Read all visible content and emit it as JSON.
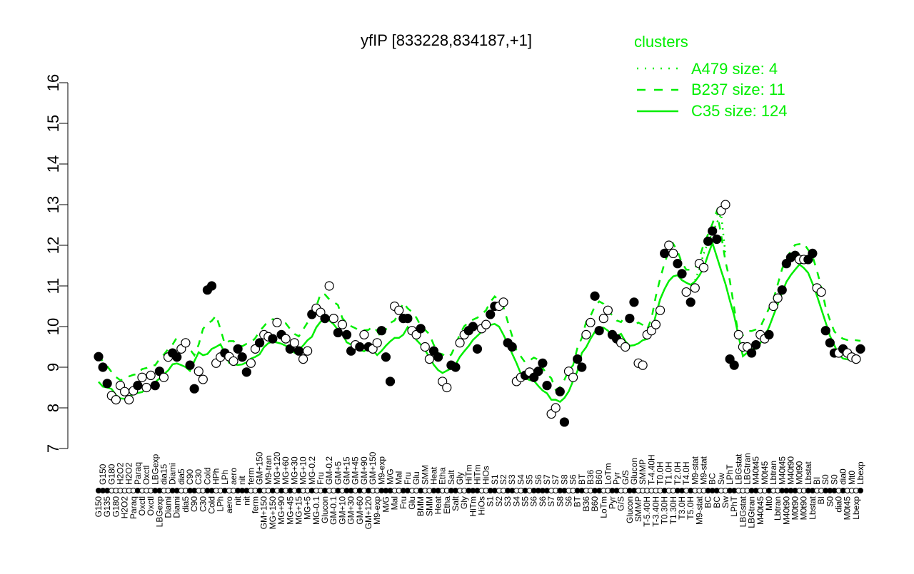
{
  "chart_data": {
    "type": "scatter",
    "title": "yfIP [833228,834187,+1]",
    "xlabel": "",
    "ylabel": "",
    "ylim": [
      7,
      16
    ],
    "yticks": [
      "7",
      "8",
      "9",
      "10",
      "11",
      "12",
      "13",
      "14",
      "15",
      "16"
    ],
    "grid": false,
    "legend": {
      "title": "clusters",
      "placement": "top-right",
      "color": "#00ee00",
      "entries": [
        {
          "label": "A479 size: 4",
          "style": "dotted"
        },
        {
          "label": "B237 size: 11",
          "style": "dashed"
        },
        {
          "label": "C35 size: 124",
          "style": "solid"
        }
      ]
    },
    "points": [
      [
        "G150",
        9.26,
        1
      ],
      [
        "G150",
        9.0,
        1
      ],
      [
        "G135",
        8.6,
        1
      ],
      [
        "G180",
        8.3,
        0
      ],
      [
        "G180",
        8.2,
        0
      ],
      [
        "H2O2",
        8.55,
        0
      ],
      [
        "H2O2",
        8.4,
        0
      ],
      [
        "H2O2",
        8.2,
        0
      ],
      [
        "Paraq",
        8.42,
        0
      ],
      [
        "Paraq",
        8.55,
        1
      ],
      [
        "Oxctl",
        8.75,
        0
      ],
      [
        "Oxctl",
        8.5,
        0
      ],
      [
        "Oxctl",
        8.8,
        0
      ],
      [
        "LBGexp",
        8.55,
        1
      ],
      [
        "LBGexp",
        8.9,
        1
      ],
      [
        "dia15",
        8.75,
        0
      ],
      [
        "Diami",
        9.25,
        0
      ],
      [
        "Diami",
        9.35,
        1
      ],
      [
        "Diami",
        9.25,
        1
      ],
      [
        "dia5",
        9.45,
        0
      ],
      [
        "dia5",
        9.6,
        0
      ],
      [
        "C90",
        9.05,
        1
      ],
      [
        "C90",
        8.47,
        1
      ],
      [
        "C30",
        8.9,
        0
      ],
      [
        "C30",
        8.7,
        0
      ],
      [
        "Cold",
        10.9,
        1
      ],
      [
        "Cold",
        11.0,
        1
      ],
      [
        "HPh",
        9.1,
        0
      ],
      [
        "LPh",
        9.25,
        0
      ],
      [
        "LPh",
        9.35,
        1
      ],
      [
        "aero",
        9.26,
        0
      ],
      [
        "aero",
        9.15,
        0
      ],
      [
        "nit",
        9.45,
        1
      ],
      [
        "nit",
        9.25,
        1
      ],
      [
        "nit",
        8.88,
        1
      ],
      [
        "ferm",
        9.1,
        0
      ],
      [
        "ferm",
        9.45,
        0
      ],
      [
        "GM+150",
        9.6,
        1
      ],
      [
        "GM+150",
        9.8,
        0
      ],
      [
        "M9-tran",
        9.75,
        0
      ],
      [
        "MG+150",
        9.7,
        1
      ],
      [
        "MG+120",
        10.1,
        0
      ],
      [
        "MG+90",
        9.8,
        1
      ],
      [
        "MG+60",
        9.7,
        0
      ],
      [
        "MG+45",
        9.45,
        1
      ],
      [
        "MG+30",
        9.6,
        0
      ],
      [
        "MG+15",
        9.4,
        1
      ],
      [
        "MG+10",
        9.2,
        0
      ],
      [
        "MG+5",
        9.4,
        0
      ],
      [
        "MG-0.2",
        10.3,
        1
      ],
      [
        "MG-0.1",
        10.45,
        0
      ],
      [
        "Fru",
        10.35,
        0
      ],
      [
        "Glucon",
        10.2,
        1
      ],
      [
        "GM-0.2",
        11.0,
        0
      ],
      [
        "GM-0.1",
        10.2,
        0
      ],
      [
        "GM+5",
        9.85,
        1
      ],
      [
        "GM+10",
        10.05,
        0
      ],
      [
        "GM+15",
        9.8,
        1
      ],
      [
        "GM+30",
        9.4,
        1
      ],
      [
        "GM+45",
        9.55,
        0
      ],
      [
        "GM+60",
        9.5,
        1
      ],
      [
        "GM+90",
        9.8,
        0
      ],
      [
        "GM+120",
        9.5,
        1
      ],
      [
        "GM+150",
        9.45,
        0
      ],
      [
        "M9-exp",
        9.6,
        0
      ],
      [
        "M9-exp",
        9.9,
        1
      ],
      [
        "M/G",
        9.25,
        1
      ],
      [
        "M/G",
        8.65,
        1
      ],
      [
        "Mal",
        10.5,
        0
      ],
      [
        "Mal",
        10.4,
        0
      ],
      [
        "Fru",
        10.2,
        1
      ],
      [
        "Fru",
        10.2,
        1
      ],
      [
        "Glu",
        9.9,
        0
      ],
      [
        "Glu",
        9.8,
        0
      ],
      [
        "BMM",
        9.95,
        1
      ],
      [
        "SMM",
        9.5,
        0
      ],
      [
        "SMM",
        9.2,
        0
      ],
      [
        "Heat",
        9.4,
        1
      ],
      [
        "Heat",
        9.25,
        1
      ],
      [
        "Etha",
        8.65,
        0
      ],
      [
        "Etha",
        8.5,
        0
      ],
      [
        "Salt",
        9.05,
        1
      ],
      [
        "Salt",
        9.0,
        1
      ],
      [
        "Gly",
        9.6,
        0
      ],
      [
        "Gly",
        9.8,
        0
      ],
      [
        "HiTm",
        9.9,
        1
      ],
      [
        "HiTm",
        10.0,
        1
      ],
      [
        "HiTm",
        9.45,
        1
      ],
      [
        "HiOs",
        9.95,
        0
      ],
      [
        "HiOs",
        10.05,
        0
      ],
      [
        "S1",
        10.3,
        1
      ],
      [
        "S1",
        10.5,
        1
      ],
      [
        "S2",
        10.5,
        0
      ],
      [
        "S2",
        10.6,
        0
      ],
      [
        "S3",
        9.6,
        1
      ],
      [
        "S3",
        9.5,
        1
      ],
      [
        "S4",
        8.65,
        0
      ],
      [
        "S4",
        8.75,
        0
      ],
      [
        "S5",
        8.8,
        1
      ],
      [
        "S5",
        8.88,
        0
      ],
      [
        "S6",
        8.75,
        1
      ],
      [
        "S6",
        8.9,
        1
      ],
      [
        "S6",
        9.1,
        1
      ],
      [
        "S7",
        8.55,
        1
      ],
      [
        "S7",
        7.85,
        0
      ],
      [
        "S7",
        8.0,
        0
      ],
      [
        "S8",
        8.4,
        1
      ],
      [
        "S8",
        7.65,
        1
      ],
      [
        "S6",
        8.9,
        0
      ],
      [
        "S6",
        8.75,
        0
      ],
      [
        "BT",
        9.2,
        1
      ],
      [
        "BT",
        9.0,
        1
      ],
      [
        "B36",
        9.8,
        0
      ],
      [
        "B36",
        10.1,
        0
      ],
      [
        "B60",
        10.75,
        1
      ],
      [
        "B60",
        9.9,
        1
      ],
      [
        "LoTm",
        10.2,
        0
      ],
      [
        "LoTm",
        10.4,
        0
      ],
      [
        "Pyr",
        9.8,
        1
      ],
      [
        "Pyr",
        9.7,
        1
      ],
      [
        "G/S",
        9.6,
        0
      ],
      [
        "G/S",
        9.5,
        0
      ],
      [
        "Glucon",
        10.2,
        1
      ],
      [
        "Glucon",
        10.6,
        1
      ],
      [
        "SMMP",
        9.1,
        0
      ],
      [
        "SMMP",
        9.05,
        0
      ],
      [
        "T-5.40H",
        9.8,
        0
      ],
      [
        "T-4.40H",
        9.9,
        0
      ],
      [
        "T-3.40H",
        10.05,
        0
      ],
      [
        "T0.0H",
        10.4,
        0
      ],
      [
        "T0.30H",
        11.8,
        1
      ],
      [
        "T1.0H",
        12.0,
        0
      ],
      [
        "T1.30H",
        11.8,
        0
      ],
      [
        "T2.0H",
        11.55,
        1
      ],
      [
        "T3.0H",
        11.3,
        1
      ],
      [
        "T4.0H",
        10.85,
        0
      ],
      [
        "T5.0H",
        10.6,
        1
      ],
      [
        "M9-stat",
        10.95,
        0
      ],
      [
        "M9-stat",
        11.55,
        0
      ],
      [
        "M9-stat",
        11.45,
        0
      ],
      [
        "BC",
        12.1,
        1
      ],
      [
        "BC",
        12.35,
        1
      ],
      [
        "BC",
        12.15,
        1
      ],
      [
        "Sw",
        12.85,
        0
      ],
      [
        "Sw",
        13.0,
        0
      ],
      [
        "LPhT",
        9.2,
        1
      ],
      [
        "LPhT",
        9.05,
        1
      ],
      [
        "LBGstat",
        9.8,
        0
      ],
      [
        "LBGstat",
        9.5,
        0
      ],
      [
        "LBGtran",
        9.5,
        0
      ],
      [
        "LBGtran",
        9.35,
        1
      ],
      [
        "M40t45",
        9.55,
        1
      ],
      [
        "M40t45",
        9.8,
        0
      ],
      [
        "M0t45",
        9.7,
        0
      ],
      [
        "Mt0",
        9.8,
        1
      ],
      [
        "Lbtran",
        10.5,
        0
      ],
      [
        "Lbtran",
        10.7,
        0
      ],
      [
        "M40t45",
        10.9,
        1
      ],
      [
        "M40t90",
        11.55,
        1
      ],
      [
        "M40t90",
        11.7,
        1
      ],
      [
        "M0t90",
        11.75,
        1
      ],
      [
        "M0t90",
        11.65,
        0
      ],
      [
        "M0t90",
        11.65,
        0
      ],
      [
        "Lbstat",
        11.65,
        1
      ],
      [
        "Lbstat",
        11.8,
        1
      ],
      [
        "BI",
        10.95,
        0
      ],
      [
        "BI",
        10.85,
        0
      ],
      [
        "S0",
        9.9,
        1
      ],
      [
        "S0",
        9.6,
        1
      ],
      [
        "S0",
        9.35,
        1
      ],
      [
        "dia0",
        9.35,
        0
      ],
      [
        "dia0",
        9.45,
        1
      ],
      [
        "M0t45",
        9.35,
        0
      ],
      [
        "Mt0",
        9.25,
        0
      ],
      [
        "Lbexp",
        9.2,
        0
      ],
      [
        "Lbexp",
        9.45,
        1
      ]
    ]
  }
}
